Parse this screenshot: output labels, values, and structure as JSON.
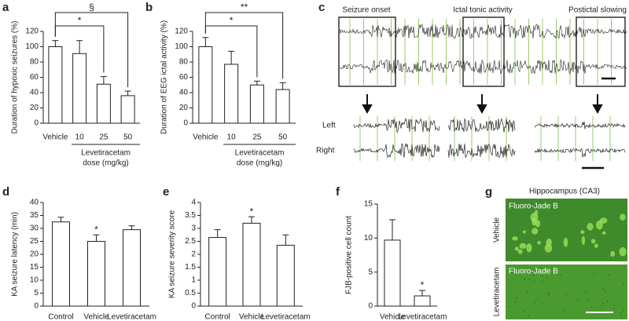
{
  "chart_data": [
    {
      "type": "bar",
      "panel": "a",
      "ylabel": "Duration of hypoxic seizures (%)",
      "categories": [
        "Vehicle",
        "10",
        "25",
        "50"
      ],
      "values": [
        100,
        91,
        51,
        36
      ],
      "errors": [
        8,
        17,
        10,
        6
      ],
      "xlabel": [
        "Levetiracetam",
        "dose (mg/kg)"
      ],
      "ylim": [
        0,
        120
      ],
      "yticks": [
        0,
        20,
        40,
        60,
        80,
        100,
        120
      ],
      "color": "#ffffff",
      "brackets": [
        {
          "label": "§",
          "between": [
            "Vehicle",
            "50"
          ]
        },
        {
          "label": "*",
          "between": [
            "Vehicle",
            "25"
          ]
        }
      ]
    },
    {
      "type": "bar",
      "panel": "b",
      "ylabel": "Duration of EEG ictal activity (%)",
      "categories": [
        "Vehicle",
        "10",
        "25",
        "50"
      ],
      "values": [
        100,
        77,
        50,
        44
      ],
      "errors": [
        12,
        17,
        5,
        9
      ],
      "xlabel": [
        "Levetiracetam",
        "dose (mg/kg)"
      ],
      "ylim": [
        0,
        120
      ],
      "yticks": [
        0,
        20,
        40,
        60,
        80,
        100,
        120
      ],
      "color": "#ffffff",
      "brackets": [
        {
          "label": "**",
          "between": [
            "Vehicle",
            "50"
          ]
        },
        {
          "label": "*",
          "between": [
            "Vehicle",
            "25"
          ]
        }
      ]
    },
    {
      "type": "bar",
      "panel": "d",
      "ylabel": "KA seizure latency (min)",
      "categories": [
        "Control",
        "Vehicle",
        "Levetiracetam"
      ],
      "values": [
        32.5,
        25,
        29.5
      ],
      "errors": [
        1.8,
        2.5,
        1.5
      ],
      "ylim": [
        0,
        40
      ],
      "yticks": [
        0,
        5,
        10,
        15,
        20,
        25,
        30,
        35,
        40
      ],
      "color": "#ffffff",
      "markers": [
        {
          "label": "*",
          "category": "Vehicle"
        }
      ]
    },
    {
      "type": "bar",
      "panel": "e",
      "ylabel": "KA seizure severity score",
      "categories": [
        "Control",
        "Vehicle",
        "Levetiracetam"
      ],
      "values": [
        2.65,
        3.2,
        2.35
      ],
      "errors": [
        0.3,
        0.25,
        0.4
      ],
      "ylim": [
        0,
        4
      ],
      "yticks": [
        0,
        0.5,
        1,
        1.5,
        2,
        2.5,
        3,
        3.5,
        4
      ],
      "color": "#ffffff",
      "markers": [
        {
          "label": "*",
          "category": "Vehicle"
        }
      ]
    },
    {
      "type": "bar",
      "panel": "f",
      "ylabel": "FJB-positive cell count",
      "categories": [
        "Vehicle",
        "Levetiracetam"
      ],
      "values": [
        9.7,
        1.5
      ],
      "errors": [
        3,
        0.8
      ],
      "ylim": [
        0,
        15
      ],
      "yticks": [
        0,
        5,
        10,
        15
      ],
      "color": "#ffffff",
      "markers": [
        {
          "label": "*",
          "category": "Levetiracetam"
        }
      ]
    }
  ],
  "eeg_panel": {
    "panel": "c",
    "phases": [
      "Seizure onset",
      "Ictal tonic activity",
      "Postictal slowing"
    ],
    "channels": [
      "Left",
      "Right"
    ]
  },
  "histology_panel": {
    "panel": "g",
    "title": "Hippocampus (CA3)",
    "stain": "Fluoro-Jade B",
    "groups": [
      "Vehicle",
      "Levetiracetam"
    ]
  }
}
